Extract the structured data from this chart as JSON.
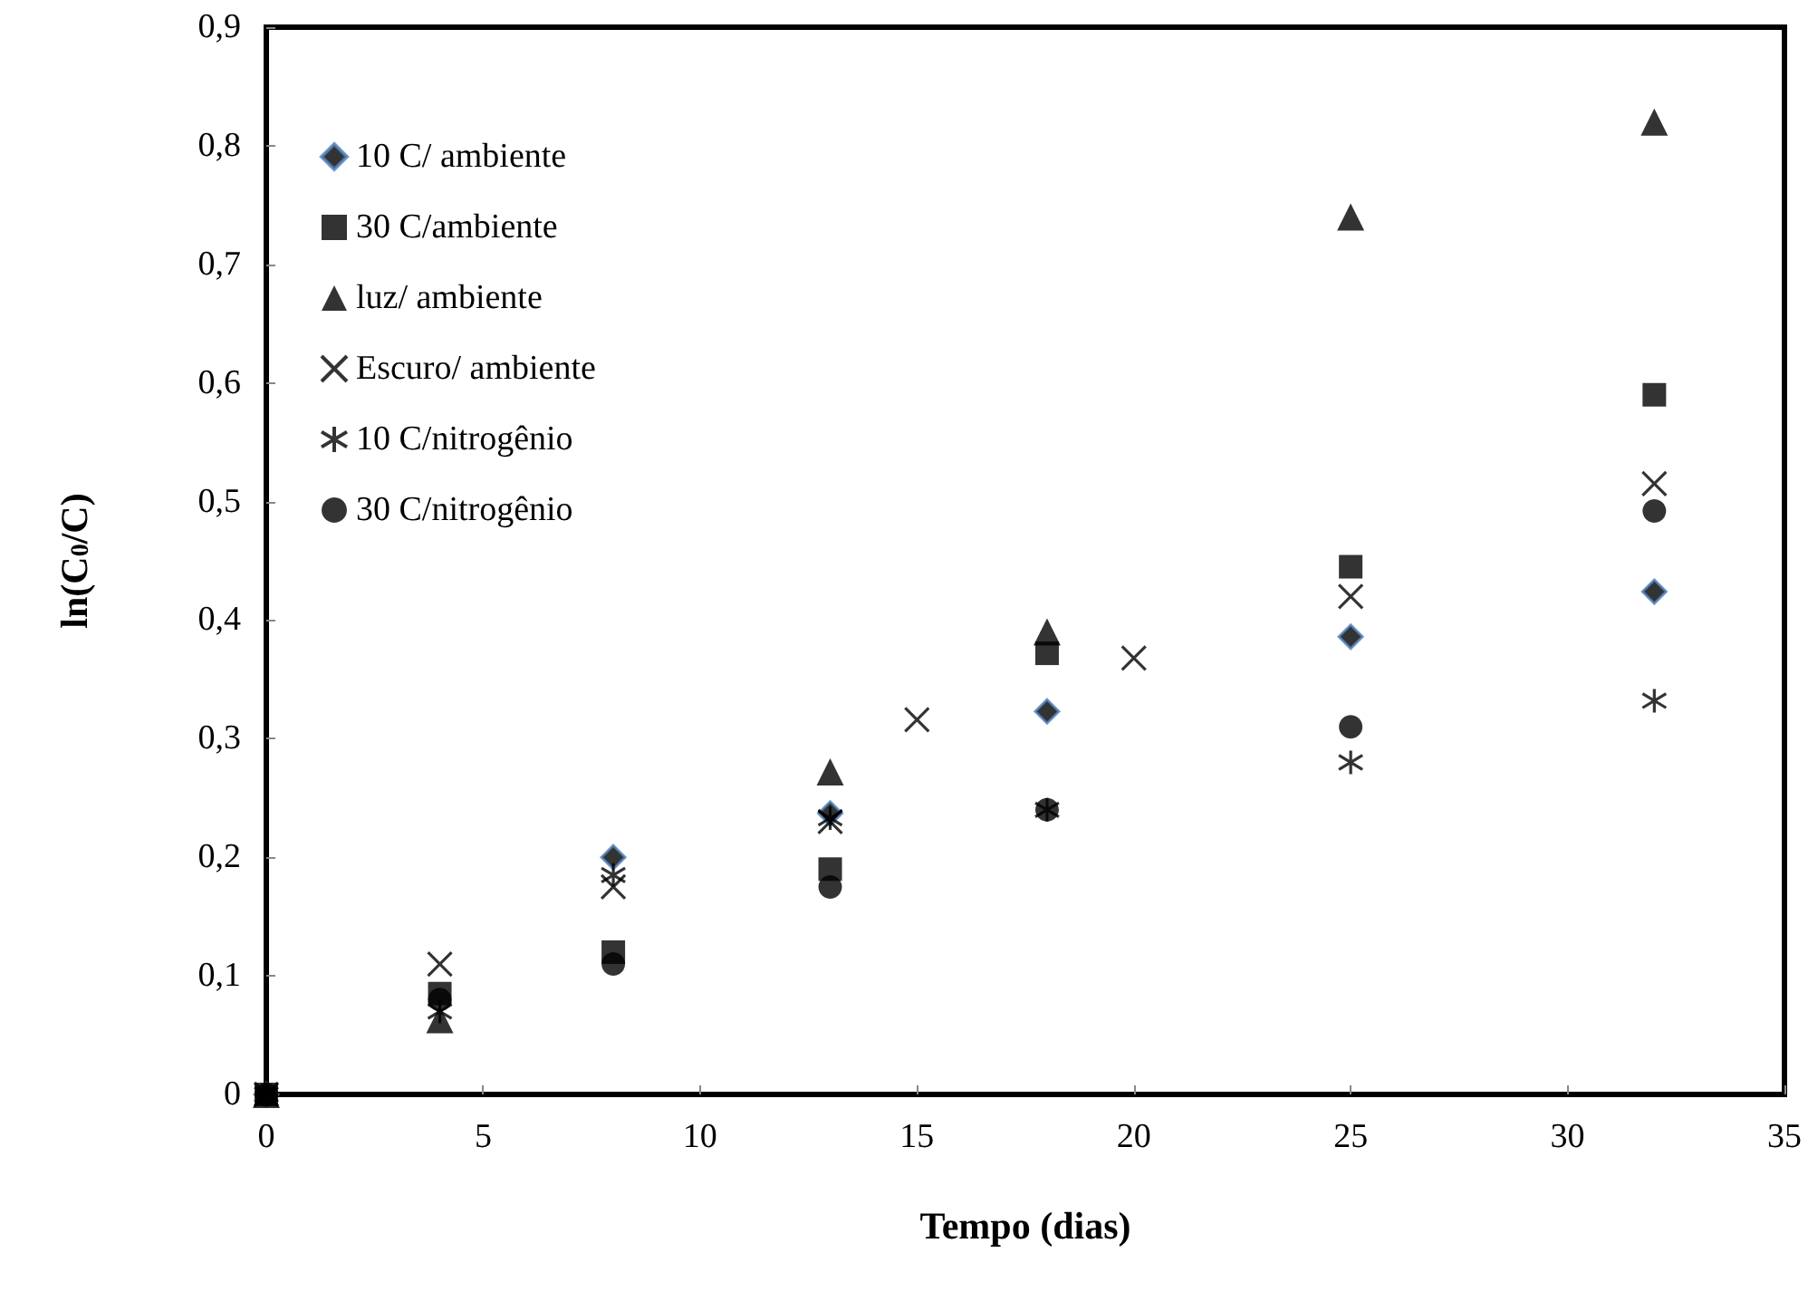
{
  "chart_data": {
    "type": "scatter",
    "xlabel": "Tempo (dias)",
    "ylabel": "ln(C$_{0}$/C)",
    "xlim": [
      0,
      35
    ],
    "xticks": [
      0,
      5,
      10,
      15,
      20,
      25,
      30,
      35
    ],
    "ylim": [
      0,
      0.9
    ],
    "yticks": [
      {
        "value": 0,
        "label": "0"
      },
      {
        "value": 0.1,
        "label": "0,1"
      },
      {
        "value": 0.2,
        "label": "0,2"
      },
      {
        "value": 0.3,
        "label": "0,3"
      },
      {
        "value": 0.4,
        "label": "0,4"
      },
      {
        "value": 0.5,
        "label": "0,5"
      },
      {
        "value": 0.6,
        "label": "0,6"
      },
      {
        "value": 0.7,
        "label": "0,7"
      },
      {
        "value": 0.8,
        "label": "0,8"
      },
      {
        "value": 0.9,
        "label": "0,9"
      }
    ],
    "grid": false,
    "legend": "top left",
    "series": [
      {
        "name": "10 C/ ambiente",
        "marker": "diamond",
        "color": "#000000",
        "x": [
          0,
          4,
          8,
          13,
          18,
          25,
          32
        ],
        "values": [
          0,
          null,
          0.2,
          0.237,
          0.323,
          0.386,
          0.424
        ]
      },
      {
        "name": "30 C/ambiente",
        "marker": "square",
        "color": "#000000",
        "x": [
          0,
          4,
          8,
          13,
          18,
          25,
          32
        ],
        "values": [
          0,
          0.085,
          0.12,
          0.19,
          0.372,
          0.445,
          0.59
        ]
      },
      {
        "name": "luz/ ambiente",
        "marker": "triangle",
        "color": "#000000",
        "x": [
          0,
          4,
          8,
          13,
          18,
          25,
          32
        ],
        "values": [
          0,
          0.063,
          null,
          0.272,
          0.39,
          0.74,
          0.82
        ]
      },
      {
        "name": "Escuro/ ambiente",
        "marker": "cross",
        "color": "#000000",
        "x": [
          0,
          4,
          8,
          13,
          15,
          20,
          25,
          32
        ],
        "values": [
          0,
          0.11,
          0.175,
          0.23,
          0.316,
          0.368,
          0.42,
          0.515
        ]
      },
      {
        "name": "10 C/nitrogênio",
        "color": "#000000",
        "x": [
          0,
          4,
          8,
          13,
          18,
          25,
          32
        ],
        "values": [
          0,
          0.07,
          0.185,
          0.233,
          0.24,
          0.28,
          0.332
        ]
      },
      {
        "name": "30 C/nitrogênio",
        "marker": "circle",
        "color": "#000000",
        "x": [
          0,
          4,
          8,
          13,
          18,
          25,
          32
        ],
        "values": [
          0,
          0.08,
          0.11,
          0.175,
          0.24,
          0.31,
          0.492
        ]
      }
    ]
  }
}
